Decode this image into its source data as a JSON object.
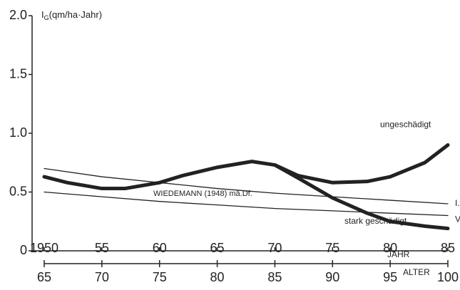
{
  "chart_data": {
    "type": "line",
    "ylabel_main": "I",
    "ylabel_sub": "G",
    "ylabel_unit": "(qm/ha·Jahr)",
    "xlabel": "JAHR",
    "x2label": "ALTER",
    "xlim": [
      1950,
      1985
    ],
    "xticks": [
      {
        "value": 1950,
        "label": "1950"
      },
      1955,
      1960,
      1965,
      1970,
      1975,
      1980,
      1985
    ],
    "xtick_labels_short": [
      null,
      "55",
      "60",
      "65",
      "70",
      "75",
      "80",
      "85"
    ],
    "x2lim": [
      65,
      100
    ],
    "x2ticks": [
      65,
      70,
      75,
      80,
      85,
      90,
      95,
      100
    ],
    "ylim": [
      0,
      2
    ],
    "yticks": [
      0,
      0.5,
      {
        "value": 1,
        "label": "1.0"
      },
      1.5,
      {
        "value": 2,
        "label": "2.0"
      }
    ],
    "series": [
      {
        "name": "ungeschädigt",
        "color": "#222",
        "width": 5,
        "x": [
          1950,
          1952,
          1955,
          1957,
          1960,
          1962,
          1965,
          1968,
          1970,
          1972,
          1975,
          1978,
          1980,
          1983,
          1985
        ],
        "values": [
          0.63,
          0.58,
          0.53,
          0.53,
          0.58,
          0.64,
          0.71,
          0.76,
          0.73,
          0.64,
          0.58,
          0.59,
          0.63,
          0.75,
          0.9
        ]
      },
      {
        "name": "stark geschädigt",
        "color": "#222",
        "width": 5,
        "x": [
          1970,
          1972,
          1975,
          1978,
          1980,
          1983,
          1985
        ],
        "values": [
          0.73,
          0.62,
          0.45,
          0.32,
          0.25,
          0.21,
          0.19
        ]
      },
      {
        "name": "I.",
        "color": "#222",
        "width": 1.3,
        "x": [
          1950,
          1955,
          1960,
          1965,
          1970,
          1975,
          1980,
          1985
        ],
        "values": [
          0.7,
          0.63,
          0.58,
          0.53,
          0.49,
          0.46,
          0.43,
          0.4
        ]
      },
      {
        "name": "V.",
        "color": "#222",
        "width": 1.3,
        "x": [
          1950,
          1955,
          1960,
          1965,
          1970,
          1975,
          1980,
          1985
        ],
        "values": [
          0.5,
          0.46,
          0.42,
          0.39,
          0.36,
          0.34,
          0.32,
          0.3
        ]
      }
    ],
    "annotation": "WIEDEMANN (1948) mä.Df."
  }
}
